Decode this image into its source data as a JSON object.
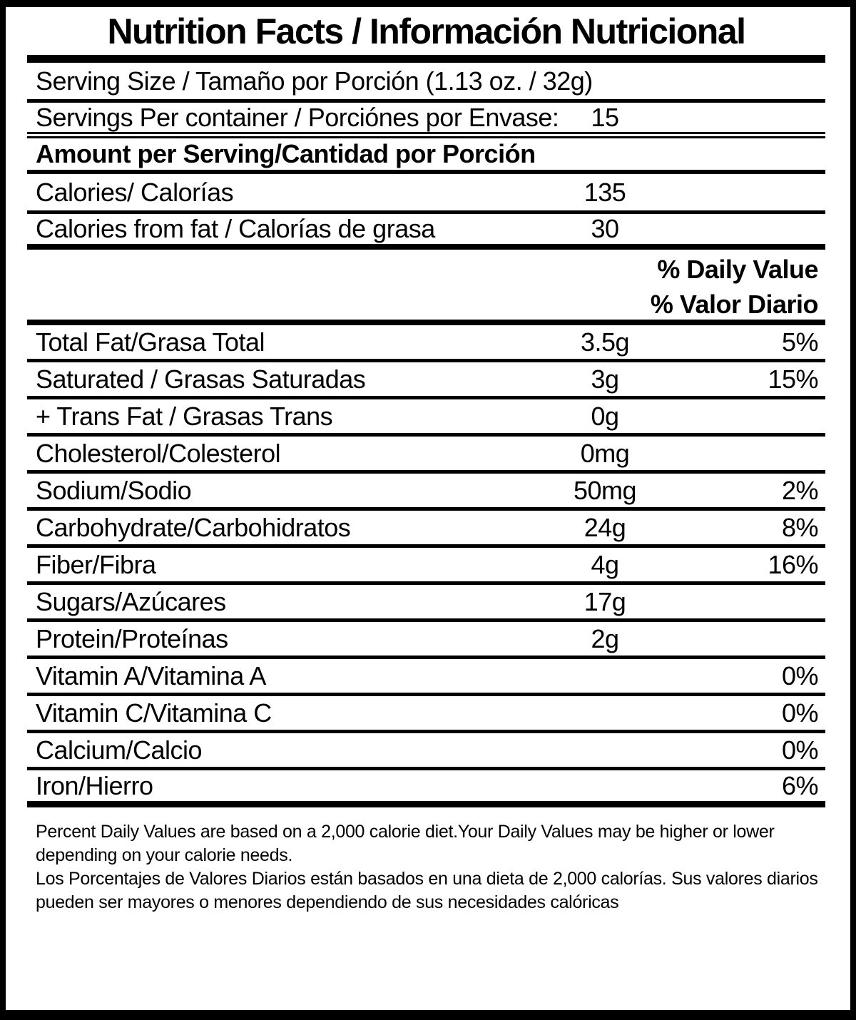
{
  "label": {
    "title": "Nutrition Facts / Información Nutricional",
    "serving_size": "Serving Size / Tamaño por Porción (1.13 oz. / 32g)",
    "servings_per_container": {
      "label": "Servings Per container / Porciónes por Envase:",
      "value": "15"
    },
    "amount_per_serving_header": "Amount per Serving/Cantidad por Porción",
    "calories": {
      "label": "Calories/ Calorías",
      "value": "135"
    },
    "calories_from_fat": {
      "label": "Calories from fat / Calorías de grasa",
      "value": "30"
    },
    "daily_value_header_en": "% Daily Value",
    "daily_value_header_es": "% Valor Diario",
    "nutrients": [
      {
        "label": "Total Fat/Grasa Total",
        "amount": "3.5g",
        "dv": "5%"
      },
      {
        "label": "Saturated / Grasas Saturadas",
        "amount": "3g",
        "dv": "15%"
      },
      {
        "label": "+ Trans Fat / Grasas Trans",
        "amount": "0g",
        "dv": ""
      },
      {
        "label": "Cholesterol/Colesterol",
        "amount": "0mg",
        "dv": ""
      },
      {
        "label": "Sodium/Sodio",
        "amount": "50mg",
        "dv": "2%"
      },
      {
        "label": "Carbohydrate/Carbohidratos",
        "amount": "24g",
        "dv": "8%"
      },
      {
        "label": "Fiber/Fibra",
        "amount": "4g",
        "dv": "16%"
      },
      {
        "label": "Sugars/Azúcares",
        "amount": "17g",
        "dv": ""
      },
      {
        "label": "Protein/Proteínas",
        "amount": "2g",
        "dv": ""
      },
      {
        "label": "Vitamin A/Vitamina A",
        "amount": "",
        "dv": "0%"
      },
      {
        "label": "Vitamin C/Vitamina C",
        "amount": "",
        "dv": "0%"
      },
      {
        "label": "Calcium/Calcio",
        "amount": "",
        "dv": "0%"
      },
      {
        "label": "Iron/Hierro",
        "amount": "",
        "dv": "6%"
      }
    ],
    "footnote_en": "Percent Daily Values are based on a 2,000 calorie diet.Your Daily Values may be higher or lower depending on your calorie needs.",
    "footnote_es": "Los Porcentajes de Valores Diarios están basados en una dieta de 2,000 calorías. Sus valores diarios pueden ser mayores o menores dependiendo de sus necesidades calóricas",
    "colors": {
      "ink": "#000000",
      "background": "#ffffff"
    }
  }
}
